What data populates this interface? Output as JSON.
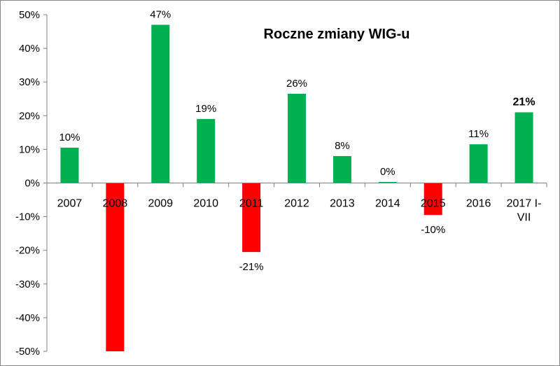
{
  "chart_data": {
    "type": "bar",
    "title": "Roczne zmiany WIG-u",
    "xlabel": "",
    "ylabel": "",
    "categories": [
      [
        "2007"
      ],
      [
        "2008"
      ],
      [
        "2009"
      ],
      [
        "2010"
      ],
      [
        "2011"
      ],
      [
        "2012"
      ],
      [
        "2013"
      ],
      [
        "2014"
      ],
      [
        "2015"
      ],
      [
        "2016"
      ],
      [
        "2017 I-",
        "VII"
      ]
    ],
    "values": [
      10.5,
      -50,
      47,
      19,
      -20.5,
      26.5,
      8,
      0.3,
      -9.5,
      11.5,
      21
    ],
    "data_labels": [
      "10%",
      "",
      "47%",
      "19%",
      "-21%",
      "26%",
      "8%",
      "0%",
      "-10%",
      "11%",
      "21%"
    ],
    "bold_labels": [
      false,
      false,
      false,
      false,
      false,
      false,
      false,
      false,
      false,
      false,
      true
    ],
    "ylim": [
      -50,
      50
    ],
    "yticks": [
      50,
      40,
      30,
      20,
      10,
      0,
      -10,
      -20,
      -30,
      -40,
      -50
    ],
    "ytick_labels": [
      "50%",
      "40%",
      "30%",
      "20%",
      "10%",
      "0%",
      "-10%",
      "-20%",
      "-30%",
      "-40%",
      "-50%"
    ],
    "grid": false,
    "legend": "none",
    "colors": {
      "positive": "#00b050",
      "negative": "#ff0000",
      "axis": "#808080"
    }
  }
}
